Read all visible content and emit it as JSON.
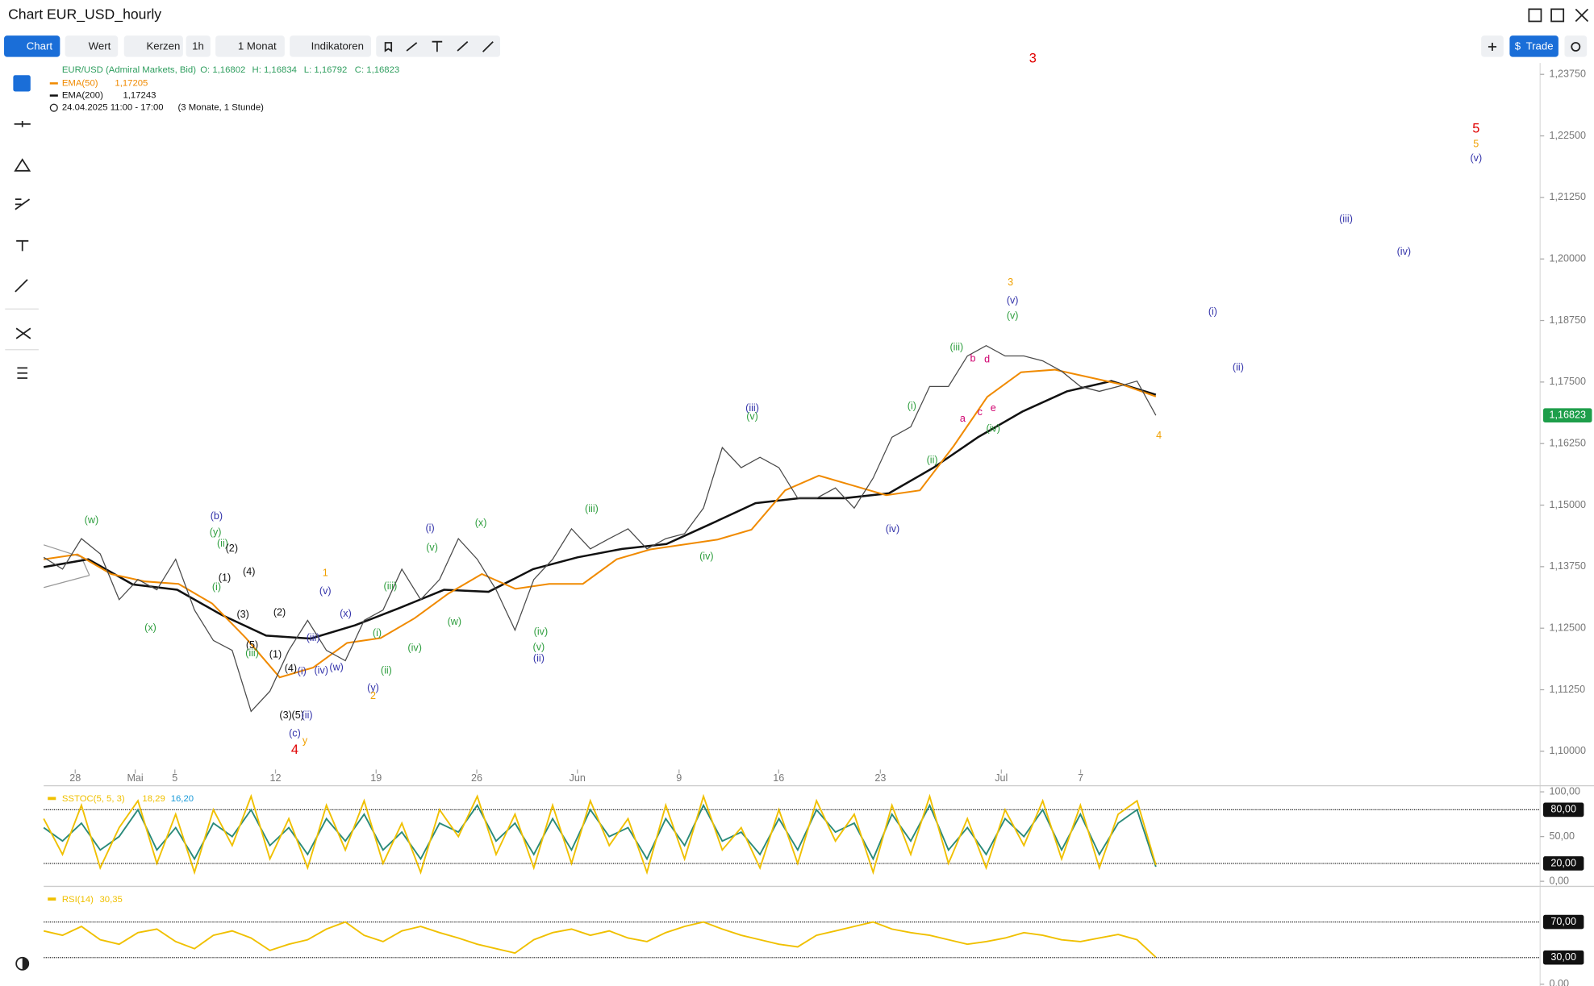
{
  "header": {
    "title": "Chart EUR_USD_hourly"
  },
  "toolbar": {
    "chart": "Chart",
    "value": "Wert",
    "candles": "Kerzen",
    "interval": "1h",
    "range": "1 Monat",
    "indicators": "Indikatoren",
    "trade": "Trade"
  },
  "chart_data": {
    "type": "line",
    "legend_values": [
      "O: 1,16802",
      "H: 1,16834",
      "L: 1,16792",
      "C: 1,16823"
    ],
    "ema_readouts": [
      "1,17205",
      "1,17243"
    ],
    "period": "24.04.2025 11:00 - 17:00",
    "period_note": "(3 Monate, 1 Stunde)",
    "series": [
      {
        "name": "EUR/USD (Admiral Markets, Bid)",
        "color": "#4a4a4a",
        "values": [
          1.1394,
          1.137,
          1.1432,
          1.1401,
          1.1308,
          1.1349,
          1.1328,
          1.139,
          1.1287,
          1.1225,
          1.1205,
          1.1081,
          1.1122,
          1.1205,
          1.1266,
          1.1205,
          1.1184,
          1.1266,
          1.1287,
          1.137,
          1.1308,
          1.1349,
          1.1432,
          1.139,
          1.1328,
          1.1246,
          1.1349,
          1.139,
          1.1452,
          1.1411,
          1.1432,
          1.1452,
          1.1411,
          1.1432,
          1.1442,
          1.1494,
          1.1617,
          1.1576,
          1.1597,
          1.1576,
          1.1514,
          1.1514,
          1.1535,
          1.1494,
          1.1555,
          1.1638,
          1.1659,
          1.1741,
          1.1741,
          1.1803,
          1.1824,
          1.1803,
          1.1803,
          1.1793,
          1.1772,
          1.1741,
          1.1731,
          1.1741,
          1.1752,
          1.16823
        ]
      },
      {
        "name": "EMA(50)",
        "color": "#f08a00",
        "values": [
          1.139,
          1.14,
          1.136,
          1.1345,
          1.134,
          1.13,
          1.123,
          1.115,
          1.117,
          1.122,
          1.123,
          1.127,
          1.132,
          1.136,
          1.133,
          1.134,
          1.134,
          1.139,
          1.141,
          1.142,
          1.143,
          1.145,
          1.153,
          1.156,
          1.154,
          1.152,
          1.153,
          1.162,
          1.172,
          1.177,
          1.1775,
          1.176,
          1.1745,
          1.17205
        ]
      },
      {
        "name": "EMA(200)",
        "color": "#111111",
        "values": [
          1.1374,
          1.139,
          1.1339,
          1.1328,
          1.1277,
          1.1235,
          1.1229,
          1.1256,
          1.1291,
          1.1328,
          1.1324,
          1.137,
          1.1394,
          1.1411,
          1.1421,
          1.1462,
          1.1504,
          1.1514,
          1.1514,
          1.1524,
          1.1576,
          1.1638,
          1.169,
          1.1731,
          1.1752,
          1.17243
        ]
      }
    ],
    "ylim": [
      1.0963,
      1.2398
    ],
    "yticks": [
      {
        "value": 1.2375,
        "label": "1,23750"
      },
      {
        "value": 1.225,
        "label": "1,22500"
      },
      {
        "value": 1.2125,
        "label": "1,21250"
      },
      {
        "value": 1.2,
        "label": "1,20000"
      },
      {
        "value": 1.1875,
        "label": "1,18750"
      },
      {
        "value": 1.175,
        "label": "1,17500"
      },
      {
        "value": 1.1625,
        "label": "1,16250"
      },
      {
        "value": 1.15,
        "label": "1,15000"
      },
      {
        "value": 1.1375,
        "label": "1,13750"
      },
      {
        "value": 1.125,
        "label": "1,12500"
      },
      {
        "value": 1.1125,
        "label": "1,11250"
      },
      {
        "value": 1.1,
        "label": "1,10000"
      }
    ],
    "last_price": {
      "value": 1.16823,
      "label": "1,16823"
    },
    "xlabels": [
      "28",
      "Mai",
      "5",
      "12",
      "19",
      "26",
      "Jun",
      "9",
      "16",
      "23",
      "Jul",
      "7"
    ],
    "wave_labels": [
      {
        "text": "(w)",
        "color": "#2e9e3e"
      },
      {
        "text": "(x)",
        "color": "#2e9e3e"
      },
      {
        "text": "(b)",
        "color": "#3333aa"
      },
      {
        "text": "(y)",
        "color": "#2e9e3e"
      },
      {
        "text": "(ii)",
        "color": "#2e9e3e"
      },
      {
        "text": "(2)",
        "color": "#111"
      },
      {
        "text": "(1)",
        "color": "#111"
      },
      {
        "text": "(4)",
        "color": "#111"
      },
      {
        "text": "(i)",
        "color": "#2e9e3e"
      },
      {
        "text": "(3)",
        "color": "#111"
      },
      {
        "text": "(2)",
        "color": "#111"
      },
      {
        "text": "(5)",
        "color": "#111"
      },
      {
        "text": "(iii)",
        "color": "#2e9e3e"
      },
      {
        "text": "(1)",
        "color": "#111"
      },
      {
        "text": "(4)",
        "color": "#111"
      },
      {
        "text": "(i)",
        "color": "#3333aa"
      },
      {
        "text": "(iv)",
        "color": "#3333aa"
      },
      {
        "text": "(w)",
        "color": "#3333aa"
      },
      {
        "text": "(iii)",
        "color": "#3333aa"
      },
      {
        "text": "(x)",
        "color": "#3333aa"
      },
      {
        "text": "(v)",
        "color": "#3333aa"
      },
      {
        "text": "1",
        "color": "#f0a000"
      },
      {
        "text": "(3)",
        "color": "#111"
      },
      {
        "text": "(5)",
        "color": "#111"
      },
      {
        "text": "(ii)",
        "color": "#3333aa"
      },
      {
        "text": "(c)",
        "color": "#3333aa"
      },
      {
        "text": "y",
        "color": "#f0a000"
      },
      {
        "text": "4",
        "color": "#e00000"
      },
      {
        "text": "(i)",
        "color": "#2e9e3e"
      },
      {
        "text": "(ii)",
        "color": "#2e9e3e"
      },
      {
        "text": "(y)",
        "color": "#3333aa"
      },
      {
        "text": "2",
        "color": "#f0a000"
      },
      {
        "text": "(iii)",
        "color": "#2e9e3e"
      },
      {
        "text": "(iv)",
        "color": "#2e9e3e"
      },
      {
        "text": "(i)",
        "color": "#3333aa"
      },
      {
        "text": "(v)",
        "color": "#2e9e3e"
      },
      {
        "text": "(w)",
        "color": "#2e9e3e"
      },
      {
        "text": "(x)",
        "color": "#2e9e3e"
      },
      {
        "text": "(iii)",
        "color": "#2e9e3e"
      },
      {
        "text": "(iv)",
        "color": "#2e9e3e"
      },
      {
        "text": "(v)",
        "color": "#2e9e3e"
      },
      {
        "text": "(ii)",
        "color": "#3333aa"
      },
      {
        "text": "(iv)",
        "color": "#2e9e3e"
      },
      {
        "text": "(iii)",
        "color": "#3333aa"
      },
      {
        "text": "(v)",
        "color": "#2e9e3e"
      },
      {
        "text": "(iv)",
        "color": "#3333aa"
      },
      {
        "text": "(i)",
        "color": "#2e9e3e"
      },
      {
        "text": "(ii)",
        "color": "#2e9e3e"
      },
      {
        "text": "(iii)",
        "color": "#2e9e3e"
      },
      {
        "text": "b",
        "color": "#d0006f"
      },
      {
        "text": "d",
        "color": "#d0006f"
      },
      {
        "text": "a",
        "color": "#d0006f"
      },
      {
        "text": "c",
        "color": "#d0006f"
      },
      {
        "text": "e",
        "color": "#d0006f"
      },
      {
        "text": "(iv)",
        "color": "#2e9e3e"
      },
      {
        "text": "3",
        "color": "#f0a000"
      },
      {
        "text": "(v)",
        "color": "#3333aa"
      },
      {
        "text": "(v)",
        "color": "#2e9e3e"
      },
      {
        "text": "4",
        "color": "#f0a000"
      },
      {
        "text": "(i)",
        "color": "#3333aa"
      },
      {
        "text": "(ii)",
        "color": "#3333aa"
      },
      {
        "text": "(iii)",
        "color": "#3333aa"
      },
      {
        "text": "(iv)",
        "color": "#3333aa"
      },
      {
        "text": "5",
        "color": "#e00000"
      },
      {
        "text": "5",
        "color": "#f0a000"
      },
      {
        "text": "(v)",
        "color": "#3333aa"
      },
      {
        "text": "3",
        "color": "#e00000"
      }
    ]
  },
  "indicators": [
    {
      "type": "line",
      "name": "SSTOC(5, 5, 3)",
      "readouts": [
        "18,29",
        "16,20"
      ],
      "readout_colors": [
        "#f0c000",
        "#1a9ad8"
      ],
      "ylim": [
        0,
        100
      ],
      "yticks": [
        {
          "value": 100,
          "label": "100,00"
        },
        {
          "value": 50,
          "label": "50,00"
        },
        {
          "value": 0,
          "label": "0,00"
        }
      ],
      "levels": [
        {
          "value": 80,
          "label": "80,00"
        },
        {
          "value": 20,
          "label": "20,00"
        }
      ],
      "series": [
        {
          "color": "#f0c000",
          "values": [
            70,
            30,
            85,
            15,
            60,
            90,
            20,
            75,
            10,
            80,
            40,
            95,
            25,
            70,
            15,
            85,
            35,
            90,
            20,
            65,
            10,
            80,
            50,
            95,
            30,
            75,
            15,
            85,
            20,
            90,
            40,
            70,
            10,
            85,
            25,
            95,
            35,
            60,
            15,
            80,
            20,
            90,
            45,
            75,
            10,
            85,
            30,
            95,
            20,
            70,
            15,
            80,
            40,
            90,
            25,
            85,
            15,
            75,
            90,
            18.29
          ]
        },
        {
          "color": "#2a8a7a",
          "values": [
            60,
            45,
            65,
            35,
            50,
            80,
            35,
            60,
            25,
            65,
            50,
            80,
            40,
            60,
            30,
            70,
            45,
            75,
            35,
            55,
            25,
            65,
            55,
            85,
            45,
            65,
            30,
            70,
            35,
            80,
            50,
            60,
            25,
            70,
            40,
            85,
            45,
            55,
            30,
            70,
            35,
            80,
            55,
            65,
            25,
            75,
            45,
            85,
            35,
            60,
            30,
            70,
            50,
            80,
            35,
            75,
            30,
            65,
            80,
            16.2
          ]
        }
      ]
    },
    {
      "type": "line",
      "name": "RSI(14)",
      "readouts": [
        "30,35"
      ],
      "readout_colors": [
        "#f0c000"
      ],
      "ylim": [
        0,
        100
      ],
      "yticks": [
        {
          "value": 0,
          "label": "0,00"
        }
      ],
      "levels": [
        {
          "value": 70,
          "label": "70,00"
        },
        {
          "value": 30,
          "label": "30,00"
        }
      ],
      "series": [
        {
          "color": "#f0c000",
          "values": [
            60,
            55,
            65,
            50,
            45,
            58,
            62,
            48,
            40,
            55,
            60,
            52,
            38,
            45,
            50,
            62,
            70,
            55,
            48,
            60,
            65,
            58,
            52,
            45,
            40,
            35,
            50,
            58,
            62,
            55,
            60,
            52,
            48,
            58,
            65,
            70,
            62,
            55,
            50,
            45,
            42,
            55,
            60,
            65,
            70,
            62,
            58,
            55,
            50,
            45,
            48,
            52,
            58,
            55,
            50,
            48,
            52,
            56,
            50,
            30.35
          ]
        }
      ]
    }
  ]
}
